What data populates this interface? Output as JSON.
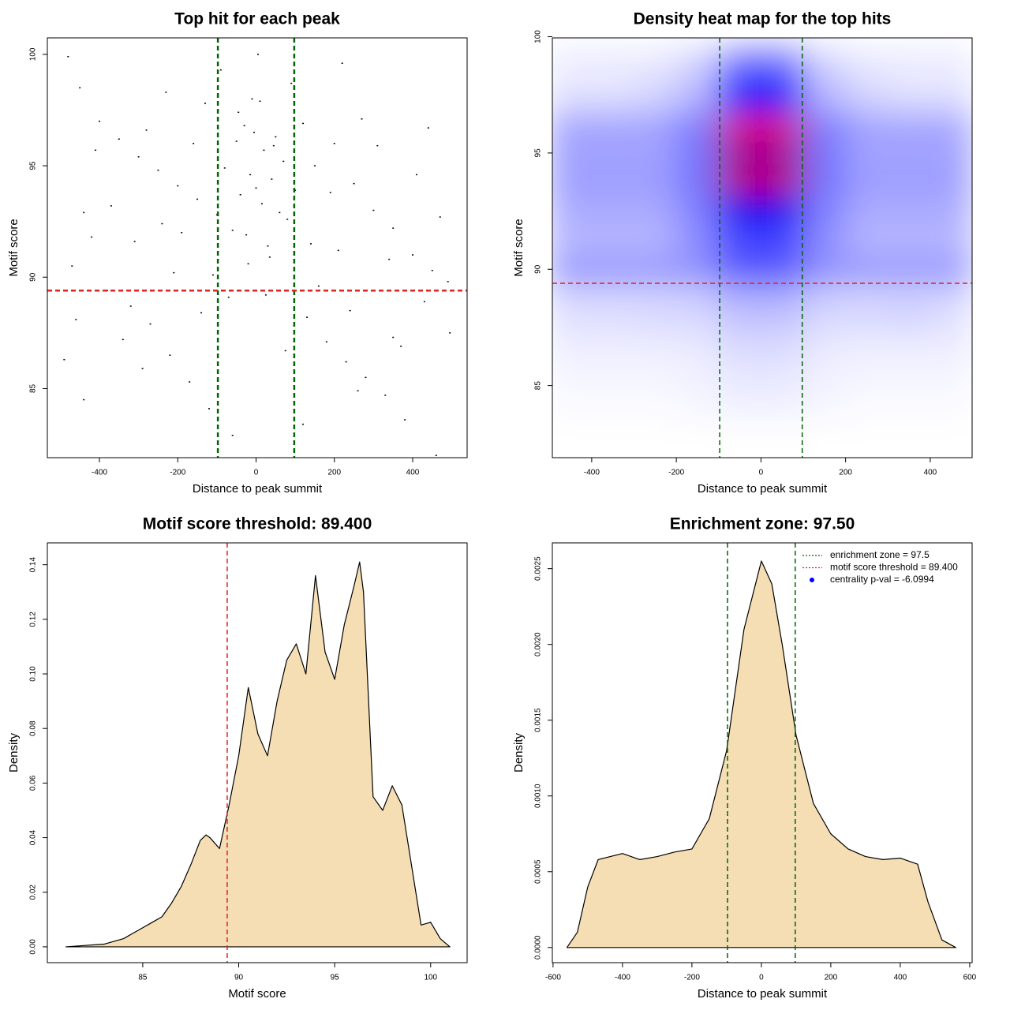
{
  "chart_data": [
    {
      "type": "scatter",
      "title": "Top hit for each peak",
      "xlabel": "Distance to peak summit",
      "ylabel": "Motif score",
      "xlim": [
        -533,
        539
      ],
      "ylim": [
        81.9,
        100.74
      ],
      "xticks": [
        -400,
        -200,
        0,
        200,
        400
      ],
      "yticks": [
        85,
        90,
        95,
        100
      ],
      "color": "#000000",
      "x": [
        -480,
        -450,
        -400,
        -350,
        -300,
        -250,
        -200,
        -150,
        -100,
        -50,
        0,
        50,
        100,
        150,
        200,
        250,
        300,
        350,
        400,
        450,
        490,
        -470,
        -420,
        -370,
        -320,
        -270,
        -220,
        -170,
        -120,
        -70,
        -20,
        30,
        80,
        130,
        180,
        230,
        280,
        330,
        380,
        430,
        -10,
        10,
        -30,
        20,
        40,
        -40,
        60,
        -60,
        70,
        -80,
        5,
        -90,
        90,
        -25,
        35,
        -5,
        15,
        -15,
        45,
        -45,
        -490,
        -460,
        -440,
        -410,
        -380,
        -340,
        -310,
        -280,
        -240,
        -210,
        210,
        240,
        270,
        310,
        340,
        370,
        410,
        440,
        470,
        495,
        -130,
        -110,
        120,
        140,
        -160,
        160,
        -190,
        190,
        -230,
        220,
        -60,
        120,
        460,
        -440,
        350,
        -290,
        260,
        -140,
        25,
        75
      ],
      "y": [
        99.9,
        98.5,
        97,
        96.2,
        95.4,
        94.8,
        94.1,
        93.5,
        92.8,
        96.1,
        94,
        96.3,
        93.9,
        95,
        96,
        94.2,
        93,
        92.2,
        91,
        90.3,
        89.8,
        90.5,
        91.8,
        93.2,
        88.7,
        87.9,
        86.5,
        85.3,
        84.1,
        89.1,
        90.6,
        91.4,
        92.6,
        88.2,
        87.1,
        86.2,
        85.5,
        84.7,
        83.6,
        88.9,
        98,
        97.9,
        96.8,
        95.7,
        94.4,
        93.7,
        92.9,
        92.1,
        95.2,
        94.9,
        100,
        99.3,
        98.7,
        91.9,
        90.9,
        96.5,
        93.3,
        94.6,
        95.9,
        97.4,
        86.3,
        88.1,
        92.9,
        95.7,
        89.4,
        87.2,
        91.6,
        96.6,
        92.4,
        90.2,
        91.2,
        88.5,
        97.1,
        95.9,
        90.8,
        86.9,
        94.6,
        96.7,
        92.7,
        87.5,
        97.8,
        90.1,
        96.9,
        91.5,
        96,
        89.6,
        92,
        93.8,
        98.3,
        99.6,
        82.9,
        83.4,
        82,
        84.5,
        87.3,
        85.9,
        84.9,
        88.4,
        89.2,
        86.7
      ],
      "vlines": [
        -97.5,
        97.5
      ],
      "vline_color": "#006400",
      "hlines": [
        89.4
      ],
      "hline_color": "#dd2222"
    },
    {
      "type": "heatmap",
      "title": "Density heat map for the top hits",
      "xlabel": "Distance to peak summit",
      "ylabel": "Motif score",
      "xlim": [
        -493,
        499
      ],
      "ylim": [
        81.9,
        99.95
      ],
      "xticks": [
        -400,
        -200,
        0,
        200,
        400
      ],
      "yticks": [
        85,
        90,
        95,
        100
      ],
      "colorscale": [
        "#ffffff",
        "#0000ff",
        "#ff0000"
      ],
      "x": [
        -450,
        -350,
        -250,
        -150,
        -50,
        50,
        150,
        250,
        350,
        450
      ],
      "y": [
        99,
        98,
        97,
        96,
        95,
        94,
        93,
        92,
        91,
        90,
        89,
        88,
        87,
        86,
        85,
        84
      ],
      "z": [
        [
          0.05,
          0.05,
          0.05,
          0.1,
          0.3,
          0.3,
          0.1,
          0.05,
          0.05,
          0.05
        ],
        [
          0.05,
          0.05,
          0.08,
          0.15,
          0.6,
          0.6,
          0.15,
          0.08,
          0.05,
          0.05
        ],
        [
          0.1,
          0.1,
          0.12,
          0.2,
          0.5,
          0.5,
          0.2,
          0.12,
          0.1,
          0.1
        ],
        [
          0.25,
          0.25,
          0.25,
          0.35,
          1,
          1,
          0.35,
          0.25,
          0.25,
          0.25
        ],
        [
          0.2,
          0.2,
          0.2,
          0.3,
          0.7,
          0.7,
          0.3,
          0.2,
          0.2,
          0.2
        ],
        [
          0.25,
          0.25,
          0.25,
          0.35,
          0.95,
          0.95,
          0.35,
          0.25,
          0.25,
          0.25
        ],
        [
          0.2,
          0.2,
          0.2,
          0.3,
          0.65,
          0.65,
          0.3,
          0.2,
          0.2,
          0.2
        ],
        [
          0.2,
          0.2,
          0.2,
          0.3,
          0.55,
          0.55,
          0.3,
          0.2,
          0.2,
          0.2
        ],
        [
          0.15,
          0.15,
          0.15,
          0.25,
          0.4,
          0.4,
          0.25,
          0.15,
          0.15,
          0.15
        ],
        [
          0.3,
          0.3,
          0.3,
          0.3,
          0.45,
          0.45,
          0.3,
          0.3,
          0.3,
          0.3
        ],
        [
          0.1,
          0.1,
          0.1,
          0.12,
          0.2,
          0.2,
          0.12,
          0.1,
          0.1,
          0.1
        ],
        [
          0.08,
          0.08,
          0.1,
          0.1,
          0.15,
          0.15,
          0.1,
          0.1,
          0.12,
          0.08
        ],
        [
          0.05,
          0.05,
          0.05,
          0.06,
          0.1,
          0.1,
          0.06,
          0.05,
          0.05,
          0.05
        ],
        [
          0.03,
          0.03,
          0.03,
          0.04,
          0.07,
          0.07,
          0.04,
          0.03,
          0.03,
          0.03
        ],
        [
          0.02,
          0.02,
          0.02,
          0.03,
          0.05,
          0.05,
          0.03,
          0.02,
          0.02,
          0.02
        ],
        [
          0.01,
          0.01,
          0.01,
          0.02,
          0.03,
          0.03,
          0.02,
          0.01,
          0.01,
          0.01
        ]
      ],
      "vlines": [
        -97.5,
        97.5
      ],
      "vline_color": "#006400",
      "hlines": [
        89.4
      ],
      "hline_color": "#dd2222"
    },
    {
      "type": "area",
      "title": "Motif score threshold: 89.400",
      "xlabel": "Motif score",
      "ylabel": "Density",
      "xlim": [
        80.03,
        101.9
      ],
      "ylim": [
        -0.0058,
        0.148
      ],
      "xticks": [
        85,
        90,
        95,
        100
      ],
      "yticks": [
        {
          "value": 0,
          "label": "0.00"
        },
        0.02,
        0.04,
        0.06,
        0.08,
        {
          "value": 0.1,
          "label": "0.10"
        },
        0.12,
        0.14
      ],
      "fill": "#f5deb3",
      "x": [
        81,
        82,
        83,
        84,
        84.5,
        85,
        85.5,
        86,
        86.5,
        87,
        87.5,
        88,
        88.3,
        88.5,
        89,
        89.5,
        90,
        90.5,
        91,
        91.5,
        92,
        92.5,
        93,
        93.5,
        94,
        94.5,
        95,
        95.5,
        96,
        96.3,
        96.5,
        97,
        97.5,
        98,
        98.5,
        99,
        99.5,
        100,
        100.5,
        101
      ],
      "y": [
        0,
        0.0005,
        0.001,
        0.003,
        0.005,
        0.007,
        0.009,
        0.011,
        0.016,
        0.022,
        0.03,
        0.039,
        0.041,
        0.04,
        0.036,
        0.052,
        0.07,
        0.095,
        0.078,
        0.07,
        0.09,
        0.105,
        0.111,
        0.1,
        0.136,
        0.108,
        0.098,
        0.118,
        0.132,
        0.141,
        0.13,
        0.055,
        0.05,
        0.059,
        0.052,
        0.03,
        0.008,
        0.009,
        0.003,
        0
      ],
      "vlines": [
        89.4
      ],
      "vline_color": "#dd2222"
    },
    {
      "type": "area",
      "title": "Enrichment zone: 97.50",
      "xlabel": "Distance to peak summit",
      "ylabel": "Density",
      "xlim": [
        -602,
        607
      ],
      "ylim": [
        -0.0001,
        0.00267
      ],
      "xticks": [
        -600,
        -400,
        -200,
        0,
        200,
        400,
        600
      ],
      "yticks": [
        {
          "value": 0,
          "label": "0.0000"
        },
        {
          "value": 0.0005,
          "label": "0.0005"
        },
        {
          "value": 0.001,
          "label": "0.0010"
        },
        {
          "value": 0.0015,
          "label": "0.0015"
        },
        {
          "value": 0.002,
          "label": "0.0020"
        },
        {
          "value": 0.0025,
          "label": "0.0025"
        }
      ],
      "fill": "#f5deb3",
      "x": [
        -560,
        -530,
        -500,
        -470,
        -400,
        -350,
        -300,
        -250,
        -200,
        -150,
        -100,
        -50,
        0,
        30,
        60,
        100,
        150,
        200,
        250,
        300,
        350,
        400,
        450,
        480,
        520,
        560
      ],
      "y": [
        0,
        0.0001,
        0.0004,
        0.00058,
        0.00062,
        0.00058,
        0.0006,
        0.00063,
        0.00065,
        0.00085,
        0.0013,
        0.0021,
        0.00255,
        0.0024,
        0.002,
        0.0014,
        0.00095,
        0.00075,
        0.00065,
        0.0006,
        0.00058,
        0.00059,
        0.00055,
        0.0003,
        5e-05,
        0
      ],
      "vlines": [
        -97.5,
        97.5
      ],
      "vline_color": "#006400",
      "legend": [
        {
          "label": "enrichment zone = 97.5",
          "color": "#006400",
          "marker": "line"
        },
        {
          "label": "motif score threshold = 89.400",
          "color": "#dd2222",
          "marker": "line"
        },
        {
          "label": "centrality p-val = -6.0994",
          "color": "#0000ff",
          "marker": "dot"
        }
      ]
    }
  ]
}
